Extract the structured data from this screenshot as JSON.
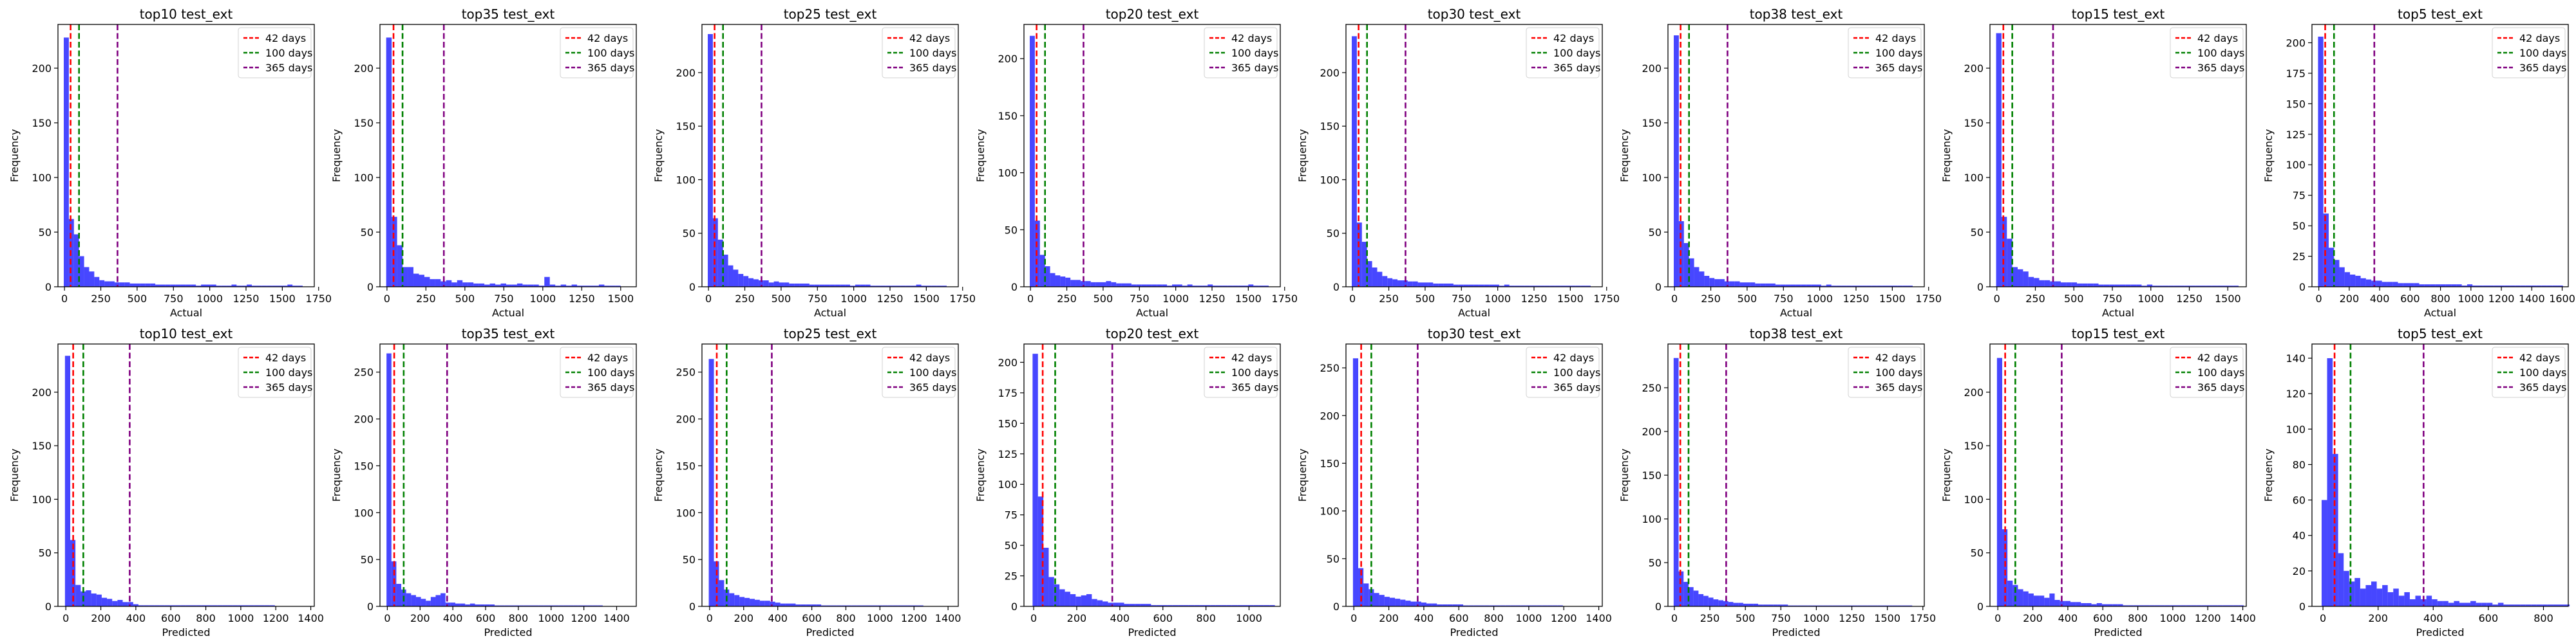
{
  "colors": {
    "bar": "#0000ff",
    "line_42": "#ff0000",
    "line_100": "#008000",
    "line_365": "#800080"
  },
  "legend_labels": [
    "42 days",
    "100 days",
    "365 days"
  ],
  "chart_data": [
    {
      "type": "bar",
      "title": "top10 test_ext",
      "xlabel": "Actual",
      "ylabel": "Frequency",
      "xlim": [
        -45,
        1720
      ],
      "ylim": [
        0,
        240
      ],
      "xticks": [
        0,
        250,
        500,
        750,
        1000,
        1250,
        1500,
        1750
      ],
      "yticks": [
        0,
        50,
        100,
        150,
        200
      ],
      "bin_start": -5,
      "bin_width": 35,
      "values": [
        228,
        62,
        48,
        28,
        18,
        14,
        9,
        6,
        5,
        5,
        4,
        4,
        4,
        3,
        3,
        3,
        3,
        3,
        2,
        2,
        2,
        2,
        2,
        2,
        2,
        2,
        1,
        2,
        2,
        2,
        1,
        1,
        1,
        2,
        1,
        1,
        2,
        1,
        1,
        1,
        1,
        1,
        1,
        1,
        2,
        1,
        1
      ],
      "vlines": [
        42,
        100,
        365
      ],
      "legend": "top-right"
    },
    {
      "type": "bar",
      "title": "top35 test_ext",
      "xlabel": "Actual",
      "ylabel": "Frequency",
      "xlim": [
        -45,
        1600
      ],
      "ylim": [
        0,
        240
      ],
      "xticks": [
        0,
        250,
        500,
        750,
        1000,
        1250,
        1500
      ],
      "yticks": [
        0,
        50,
        100,
        150,
        200
      ],
      "bin_start": -5,
      "bin_width": 35,
      "values": [
        228,
        64,
        38,
        18,
        18,
        12,
        11,
        9,
        7,
        7,
        5,
        6,
        4,
        6,
        4,
        4,
        3,
        3,
        2,
        3,
        2,
        3,
        2,
        2,
        3,
        2,
        2,
        2,
        1,
        9,
        2,
        1,
        2,
        1,
        2,
        1,
        1,
        1,
        1,
        2,
        1,
        1,
        1
      ],
      "vlines": [
        42,
        100,
        365
      ],
      "legend": "top-right"
    },
    {
      "type": "bar",
      "title": "top25 test_ext",
      "xlabel": "Actual",
      "ylabel": "Frequency",
      "xlim": [
        -45,
        1720
      ],
      "ylim": [
        0,
        245
      ],
      "xticks": [
        0,
        250,
        500,
        750,
        1000,
        1250,
        1500,
        1750
      ],
      "yticks": [
        0,
        50,
        100,
        150,
        200
      ],
      "bin_start": -5,
      "bin_width": 35,
      "values": [
        236,
        64,
        44,
        30,
        20,
        16,
        12,
        10,
        8,
        7,
        6,
        6,
        4,
        5,
        4,
        4,
        3,
        3,
        3,
        3,
        2,
        2,
        2,
        2,
        2,
        2,
        2,
        2,
        1,
        2,
        2,
        2,
        1,
        1,
        1,
        1,
        1,
        1,
        1,
        1,
        1,
        2,
        1,
        1,
        1,
        1,
        1
      ],
      "vlines": [
        42,
        100,
        365
      ],
      "legend": "top-right"
    },
    {
      "type": "bar",
      "title": "top20 test_ext",
      "xlabel": "Actual",
      "ylabel": "Frequency",
      "xlim": [
        -45,
        1720
      ],
      "ylim": [
        0,
        230
      ],
      "xticks": [
        0,
        250,
        500,
        750,
        1000,
        1250,
        1500,
        1750
      ],
      "yticks": [
        0,
        50,
        100,
        150,
        200
      ],
      "bin_start": -5,
      "bin_width": 35,
      "values": [
        220,
        58,
        28,
        18,
        12,
        10,
        9,
        8,
        6,
        6,
        5,
        5,
        4,
        4,
        4,
        5,
        4,
        3,
        3,
        3,
        2,
        2,
        2,
        2,
        2,
        2,
        2,
        1,
        2,
        2,
        1,
        2,
        1,
        1,
        1,
        2,
        1,
        1,
        1,
        1,
        1,
        1,
        1,
        2,
        1,
        1,
        1
      ],
      "vlines": [
        42,
        100,
        365
      ],
      "legend": "top-right"
    },
    {
      "type": "bar",
      "title": "top30 test_ext",
      "xlabel": "Actual",
      "ylabel": "Frequency",
      "xlim": [
        -45,
        1720
      ],
      "ylim": [
        0,
        245
      ],
      "xticks": [
        0,
        250,
        500,
        750,
        1000,
        1250,
        1500,
        1750
      ],
      "yticks": [
        0,
        50,
        100,
        150,
        200
      ],
      "bin_start": -5,
      "bin_width": 35,
      "values": [
        234,
        60,
        42,
        24,
        18,
        14,
        10,
        8,
        7,
        6,
        6,
        5,
        5,
        4,
        4,
        4,
        3,
        3,
        3,
        3,
        2,
        2,
        2,
        2,
        2,
        2,
        2,
        2,
        2,
        1,
        2,
        1,
        1,
        1,
        1,
        1,
        1,
        1,
        1,
        1,
        1,
        1,
        1,
        1,
        1,
        1,
        1
      ],
      "vlines": [
        42,
        100,
        365
      ],
      "legend": "top-right"
    },
    {
      "type": "bar",
      "title": "top38 test_ext",
      "xlabel": "Actual",
      "ylabel": "Frequency",
      "xlim": [
        -45,
        1720
      ],
      "ylim": [
        0,
        240
      ],
      "xticks": [
        0,
        250,
        500,
        750,
        1000,
        1250,
        1500,
        1750
      ],
      "yticks": [
        0,
        50,
        100,
        150,
        200
      ],
      "bin_start": -5,
      "bin_width": 35,
      "values": [
        230,
        60,
        40,
        26,
        18,
        14,
        10,
        8,
        7,
        7,
        5,
        5,
        5,
        4,
        4,
        4,
        3,
        3,
        3,
        3,
        2,
        2,
        2,
        2,
        2,
        2,
        2,
        2,
        2,
        1,
        2,
        1,
        1,
        1,
        1,
        1,
        1,
        1,
        1,
        1,
        1,
        1,
        1,
        1,
        1,
        1,
        1
      ],
      "vlines": [
        42,
        100,
        365
      ],
      "legend": "top-right"
    },
    {
      "type": "bar",
      "title": "top15 test_ext",
      "xlabel": "Actual",
      "ylabel": "Frequency",
      "xlim": [
        -45,
        1620
      ],
      "ylim": [
        0,
        240
      ],
      "xticks": [
        0,
        250,
        500,
        750,
        1000,
        1250,
        1500
      ],
      "yticks": [
        0,
        50,
        100,
        150,
        200
      ],
      "bin_start": -5,
      "bin_width": 35,
      "values": [
        232,
        64,
        44,
        18,
        16,
        14,
        9,
        8,
        6,
        6,
        5,
        5,
        4,
        4,
        4,
        3,
        3,
        3,
        3,
        2,
        2,
        2,
        2,
        2,
        2,
        2,
        2,
        1,
        2,
        1,
        1,
        1,
        1,
        1,
        1,
        1,
        1,
        1,
        1,
        1,
        1,
        1,
        1,
        1,
        1
      ],
      "vlines": [
        42,
        100,
        365
      ],
      "legend": "top-right"
    },
    {
      "type": "bar",
      "title": "top5 test_ext",
      "xlabel": "Actual",
      "ylabel": "Frequency",
      "xlim": [
        -45,
        1640
      ],
      "ylim": [
        0,
        215
      ],
      "xticks": [
        0,
        200,
        400,
        600,
        800,
        1000,
        1200,
        1400,
        1600
      ],
      "yticks": [
        0,
        25,
        50,
        75,
        100,
        125,
        150,
        175,
        200
      ],
      "bin_start": -5,
      "bin_width": 35,
      "values": [
        205,
        60,
        32,
        22,
        16,
        12,
        10,
        9,
        7,
        6,
        5,
        5,
        4,
        4,
        4,
        3,
        3,
        3,
        3,
        2,
        2,
        2,
        2,
        2,
        2,
        2,
        2,
        1,
        2,
        1,
        1,
        1,
        1,
        1,
        1,
        1,
        1,
        1,
        1,
        1,
        1,
        1,
        1,
        1,
        1,
        1
      ],
      "vlines": [
        42,
        100,
        365
      ],
      "legend": "top-right"
    },
    {
      "type": "bar",
      "title": "top10 test_ext",
      "xlabel": "Predicted",
      "ylabel": "Frequency",
      "xlim": [
        -45,
        1420
      ],
      "ylim": [
        0,
        245
      ],
      "xticks": [
        0,
        200,
        400,
        600,
        800,
        1000,
        1200,
        1400
      ],
      "yticks": [
        0,
        50,
        100,
        150,
        200
      ],
      "bin_start": -5,
      "bin_width": 30,
      "values": [
        234,
        62,
        20,
        14,
        15,
        12,
        11,
        8,
        7,
        5,
        6,
        4,
        4,
        2,
        1,
        1,
        1,
        1,
        1,
        1,
        1,
        1,
        1,
        1,
        1,
        1,
        1,
        1,
        1,
        1,
        1,
        1,
        1,
        1,
        1,
        1,
        1,
        1,
        1,
        1
      ],
      "vlines": [
        42,
        100,
        365
      ],
      "legend": "top-right"
    },
    {
      "type": "bar",
      "title": "top35 test_ext",
      "xlabel": "Predicted",
      "ylabel": "Frequency",
      "xlim": [
        -45,
        1520
      ],
      "ylim": [
        0,
        280
      ],
      "xticks": [
        0,
        200,
        400,
        600,
        800,
        1000,
        1200,
        1400
      ],
      "yticks": [
        0,
        50,
        100,
        150,
        200,
        250
      ],
      "bin_start": -5,
      "bin_width": 30,
      "values": [
        270,
        48,
        24,
        18,
        14,
        12,
        10,
        8,
        6,
        10,
        12,
        14,
        4,
        4,
        3,
        3,
        2,
        3,
        2,
        2,
        2,
        2,
        1,
        1,
        1,
        1,
        1,
        1,
        1,
        1,
        1,
        1,
        1,
        1,
        1,
        1,
        1,
        1,
        1,
        1,
        1,
        1,
        1,
        1
      ],
      "vlines": [
        42,
        100,
        365
      ],
      "legend": "top-right"
    },
    {
      "type": "bar",
      "title": "top25 test_ext",
      "xlabel": "Predicted",
      "ylabel": "Frequency",
      "xlim": [
        -45,
        1460
      ],
      "ylim": [
        0,
        280
      ],
      "xticks": [
        0,
        200,
        400,
        600,
        800,
        1000,
        1200,
        1400
      ],
      "yticks": [
        0,
        50,
        100,
        150,
        200,
        250
      ],
      "bin_start": -5,
      "bin_width": 30,
      "values": [
        264,
        48,
        28,
        18,
        14,
        12,
        10,
        9,
        8,
        7,
        6,
        6,
        5,
        4,
        3,
        3,
        3,
        2,
        2,
        2,
        2,
        2,
        1,
        1,
        1,
        1,
        1,
        1,
        1,
        1,
        1,
        1,
        1,
        1,
        1,
        1,
        1,
        1,
        1,
        1,
        1,
        1
      ],
      "vlines": [
        42,
        100,
        365
      ],
      "legend": "top-right"
    },
    {
      "type": "bar",
      "title": "top20 test_ext",
      "xlabel": "Predicted",
      "ylabel": "Frequency",
      "xlim": [
        -45,
        1145
      ],
      "ylim": [
        0,
        215
      ],
      "xticks": [
        0,
        200,
        400,
        600,
        800,
        1000
      ],
      "yticks": [
        0,
        25,
        50,
        75,
        100,
        125,
        150,
        175,
        200
      ],
      "bin_start": -5,
      "bin_width": 25,
      "values": [
        207,
        90,
        48,
        24,
        18,
        14,
        12,
        10,
        8,
        9,
        10,
        6,
        5,
        4,
        3,
        3,
        3,
        2,
        2,
        2,
        2,
        2,
        1,
        1,
        1,
        1,
        1,
        1,
        1,
        1,
        1,
        1,
        1,
        1,
        1,
        1,
        1,
        1,
        1,
        1,
        1,
        1,
        1,
        1,
        1
      ],
      "vlines": [
        42,
        100,
        365
      ],
      "legend": "top-right"
    },
    {
      "type": "bar",
      "title": "top30 test_ext",
      "xlabel": "Predicted",
      "ylabel": "Frequency",
      "xlim": [
        -45,
        1420
      ],
      "ylim": [
        0,
        275
      ],
      "xticks": [
        0,
        200,
        400,
        600,
        800,
        1000,
        1200,
        1400
      ],
      "yticks": [
        0,
        50,
        100,
        150,
        200,
        250
      ],
      "bin_start": -5,
      "bin_width": 30,
      "values": [
        260,
        40,
        24,
        18,
        14,
        12,
        10,
        9,
        8,
        7,
        6,
        5,
        5,
        4,
        3,
        3,
        2,
        2,
        2,
        2,
        2,
        1,
        1,
        1,
        1,
        1,
        1,
        1,
        1,
        1,
        1,
        1,
        1,
        1,
        1,
        1,
        1,
        1,
        1,
        1
      ],
      "vlines": [
        42,
        100,
        365
      ],
      "legend": "top-right"
    },
    {
      "type": "bar",
      "title": "top38 test_ext",
      "xlabel": "Predicted",
      "ylabel": "Frequency",
      "xlim": [
        -45,
        1760
      ],
      "ylim": [
        0,
        300
      ],
      "xticks": [
        0,
        250,
        500,
        750,
        1000,
        1250,
        1500,
        1750
      ],
      "yticks": [
        0,
        50,
        100,
        150,
        200,
        250
      ],
      "bin_start": -5,
      "bin_width": 35,
      "values": [
        284,
        40,
        28,
        22,
        18,
        14,
        12,
        10,
        8,
        7,
        6,
        5,
        4,
        4,
        3,
        3,
        3,
        2,
        2,
        2,
        2,
        2,
        2,
        1,
        1,
        1,
        1,
        1,
        1,
        1,
        1,
        1,
        1,
        1,
        1,
        1,
        1,
        1,
        1,
        1,
        1,
        1,
        1,
        1,
        1,
        1,
        1,
        1
      ],
      "vlines": [
        42,
        100,
        365
      ],
      "legend": "top-right"
    },
    {
      "type": "bar",
      "title": "top15 test_ext",
      "xlabel": "Predicted",
      "ylabel": "Frequency",
      "xlim": [
        -45,
        1420
      ],
      "ylim": [
        0,
        245
      ],
      "xticks": [
        0,
        200,
        400,
        600,
        800,
        1000,
        1200,
        1400
      ],
      "yticks": [
        0,
        50,
        100,
        150,
        200
      ],
      "bin_start": -5,
      "bin_width": 30,
      "values": [
        232,
        72,
        24,
        20,
        16,
        14,
        12,
        10,
        10,
        8,
        12,
        6,
        5,
        5,
        4,
        4,
        3,
        3,
        2,
        3,
        2,
        2,
        2,
        2,
        1,
        1,
        1,
        1,
        1,
        1,
        1,
        1,
        1,
        1,
        1,
        1,
        1,
        1,
        1,
        1,
        1,
        1,
        1,
        1,
        1,
        1,
        1
      ],
      "vlines": [
        42,
        100,
        365
      ],
      "legend": "top-right"
    },
    {
      "type": "bar",
      "title": "top5 test_ext",
      "xlabel": "Predicted",
      "ylabel": "Frequency",
      "xlim": [
        -40,
        890
      ],
      "ylim": [
        0,
        148
      ],
      "xticks": [
        0,
        200,
        400,
        600,
        800
      ],
      "yticks": [
        0,
        20,
        40,
        60,
        80,
        100,
        120,
        140
      ],
      "bin_start": -5,
      "bin_width": 20,
      "values": [
        60,
        140,
        86,
        30,
        20,
        14,
        16,
        10,
        12,
        14,
        10,
        12,
        8,
        10,
        6,
        8,
        4,
        6,
        4,
        6,
        4,
        3,
        3,
        2,
        3,
        2,
        2,
        3,
        2,
        2,
        2,
        1,
        2,
        1,
        1,
        1,
        1,
        1,
        1,
        1,
        1,
        1,
        1,
        1,
        1
      ],
      "vlines": [
        42,
        100,
        365
      ],
      "legend": "top-right"
    }
  ]
}
